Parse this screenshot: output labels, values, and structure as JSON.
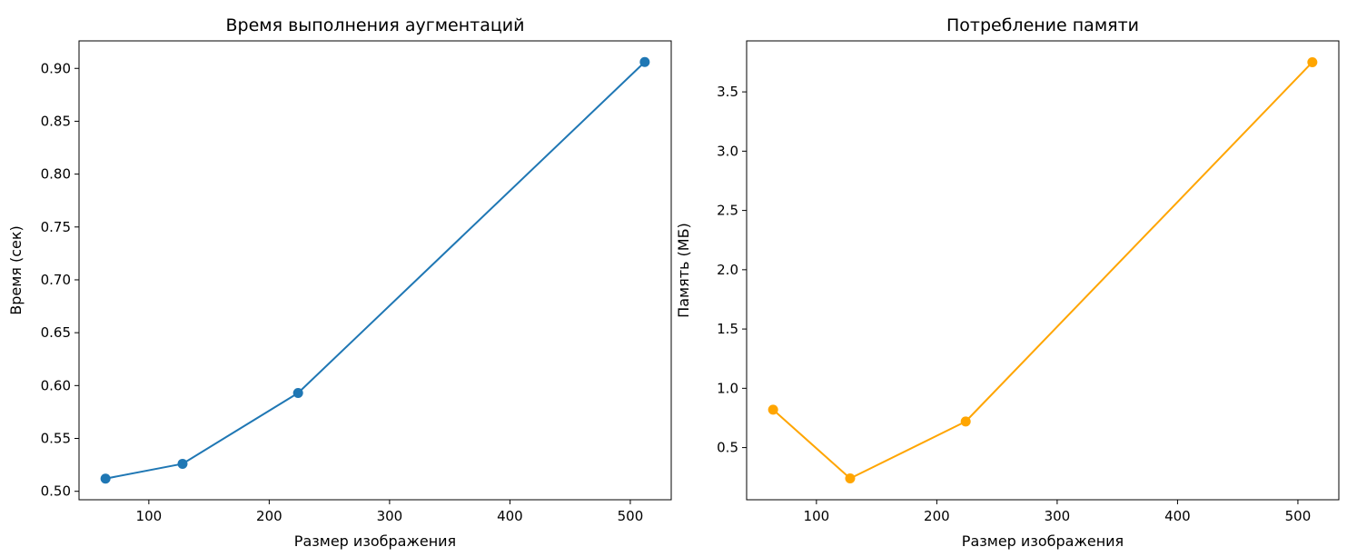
{
  "chart_data": [
    {
      "type": "line",
      "title": "Время выполнения аугментаций",
      "xlabel": "Размер изображения",
      "ylabel": "Время (сек)",
      "x": [
        64,
        128,
        224,
        512
      ],
      "values": [
        0.512,
        0.526,
        0.593,
        0.906
      ],
      "color": "#1f77b4",
      "marker": "circle",
      "xlim": [
        42,
        534
      ],
      "ylim": [
        0.492,
        0.926
      ],
      "xticks": [
        100,
        200,
        300,
        400,
        500
      ],
      "yticks": [
        0.5,
        0.55,
        0.6,
        0.65,
        0.7,
        0.75,
        0.8,
        0.85,
        0.9
      ],
      "ytick_decimals": 2,
      "grid": false
    },
    {
      "type": "line",
      "title": "Потребление памяти",
      "xlabel": "Размер изображения",
      "ylabel": "Память (МБ)",
      "x": [
        64,
        128,
        224,
        512
      ],
      "values": [
        0.82,
        0.24,
        0.72,
        3.75
      ],
      "color": "#ffa500",
      "marker": "circle",
      "xlim": [
        42,
        534
      ],
      "ylim": [
        0.06,
        3.93
      ],
      "xticks": [
        100,
        200,
        300,
        400,
        500
      ],
      "yticks": [
        0.5,
        1.0,
        1.5,
        2.0,
        2.5,
        3.0,
        3.5
      ],
      "ytick_decimals": 1,
      "grid": false
    }
  ]
}
